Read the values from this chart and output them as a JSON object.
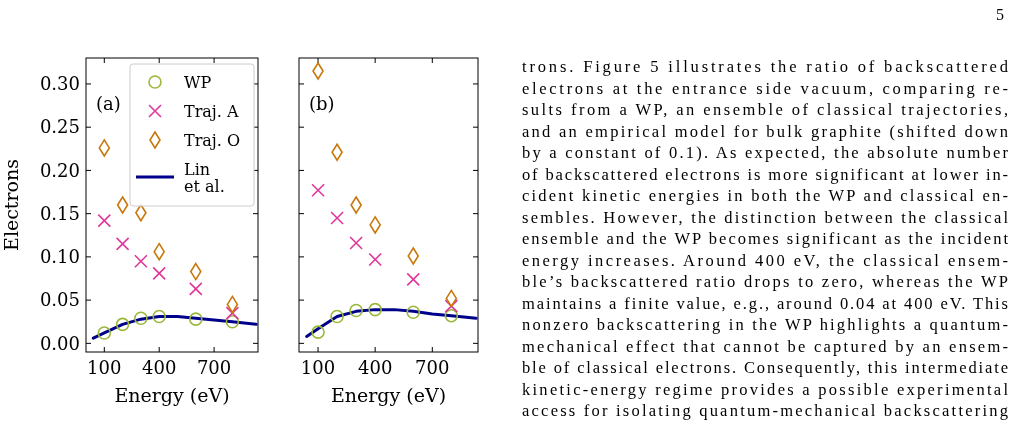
{
  "chart_data": [
    {
      "type": "scatter",
      "xlabel": "Energy (eV)",
      "ylabel": "Electrons",
      "annotations": [
        "(a)"
      ],
      "xlim": [
        0,
        940
      ],
      "ylim": [
        -0.01,
        0.33
      ],
      "xticks": [
        100,
        400,
        700
      ],
      "yticks": [
        {
          "value": 0,
          "label": "0.00"
        },
        {
          "value": 0.05,
          "label": "0.05"
        },
        {
          "value": 0.1,
          "label": "0.10"
        },
        {
          "value": 0.15,
          "label": "0.15"
        },
        {
          "value": 0.2,
          "label": "0.20"
        },
        {
          "value": 0.25,
          "label": "0.25"
        },
        {
          "value": 0.3,
          "label": "0.30"
        }
      ],
      "legend": "top right",
      "x": [
        100,
        200,
        300,
        400,
        600,
        800
      ],
      "series": [
        {
          "name": "WP",
          "color": "#9ab83c",
          "marker": "circle",
          "values": [
            0.012,
            0.022,
            0.029,
            0.031,
            0.028,
            0.025
          ]
        },
        {
          "name": "Traj. A",
          "color": "#e0389a",
          "marker": "cross",
          "values": [
            0.142,
            0.115,
            0.095,
            0.081,
            0.063,
            0.035
          ]
        },
        {
          "name": "Traj. O",
          "color": "#c8780a",
          "marker": "diamond",
          "values": [
            0.226,
            0.16,
            0.151,
            0.106,
            0.083,
            0.045
          ]
        },
        {
          "name": "Lin et al.",
          "type": "line",
          "color": "#00008b",
          "x": [
            40,
            100,
            200,
            300,
            400,
            500,
            600,
            700,
            800,
            930
          ],
          "values": [
            0.006,
            0.012,
            0.022,
            0.028,
            0.031,
            0.031,
            0.029,
            0.027,
            0.025,
            0.022
          ]
        }
      ]
    },
    {
      "type": "scatter",
      "xlabel": "Energy (eV)",
      "annotations": [
        "(b)"
      ],
      "xlim": [
        0,
        940
      ],
      "ylim": [
        -0.01,
        0.33
      ],
      "xticks": [
        100,
        400,
        700
      ],
      "yticks": [
        {
          "value": 0,
          "label": null
        },
        {
          "value": 0.05,
          "label": null
        },
        {
          "value": 0.1,
          "label": null
        },
        {
          "value": 0.15,
          "label": null
        },
        {
          "value": 0.2,
          "label": null
        },
        {
          "value": 0.25,
          "label": null
        },
        {
          "value": 0.3,
          "label": null
        }
      ],
      "tick_labels": "x",
      "x": [
        100,
        200,
        300,
        400,
        600,
        800
      ],
      "series": [
        {
          "color": "#9ab83c",
          "marker": "circle",
          "values": [
            0.013,
            0.031,
            0.038,
            0.039,
            0.036,
            0.032
          ]
        },
        {
          "color": "#e0389a",
          "marker": "cross",
          "values": [
            0.177,
            0.145,
            0.116,
            0.097,
            0.074,
            0.043
          ]
        },
        {
          "color": "#c8780a",
          "marker": "diamond",
          "values": [
            0.315,
            0.221,
            0.16,
            0.137,
            0.101,
            0.052
          ]
        },
        {
          "type": "line",
          "color": "#00008b",
          "x": [
            40,
            100,
            200,
            300,
            400,
            500,
            600,
            700,
            800,
            930
          ],
          "values": [
            0.008,
            0.017,
            0.031,
            0.037,
            0.039,
            0.039,
            0.037,
            0.034,
            0.032,
            0.029
          ]
        }
      ]
    },
    {
      "type": "other",
      "annotations": [
        "5",
        "trons.  Figure 5 illustrates the ratio of backscattered",
        "electrons at the entrance side vacuum, comparing re-",
        "sults from a WP, an ensemble of classical trajectories,",
        "and an empirical model for bulk graphite (shifted down",
        "by a constant of 0.1).  As expected, the absolute number",
        "of backscattered electrons is more significant at lower in-",
        "cident kinetic energies in both the WP and classical en-",
        "sembles.  However, the distinction between the classical",
        "ensemble and the WP becomes significant as the incident",
        "energy increases.  Around 400 eV, the classical ensem-",
        "ble’s backscattered ratio drops to zero, whereas the WP",
        "maintains a finite value, e.g., around 0.04 at 400 eV. This",
        "nonzero backscattering in the WP highlights a quantum-",
        "mechanical effect that cannot be captured by an ensem-",
        "ble of classical electrons. Consequently, this intermediate",
        "kinetic-energy regime provides a possible experimental",
        "access for isolating quantum-mechanical backscattering"
      ]
    }
  ]
}
